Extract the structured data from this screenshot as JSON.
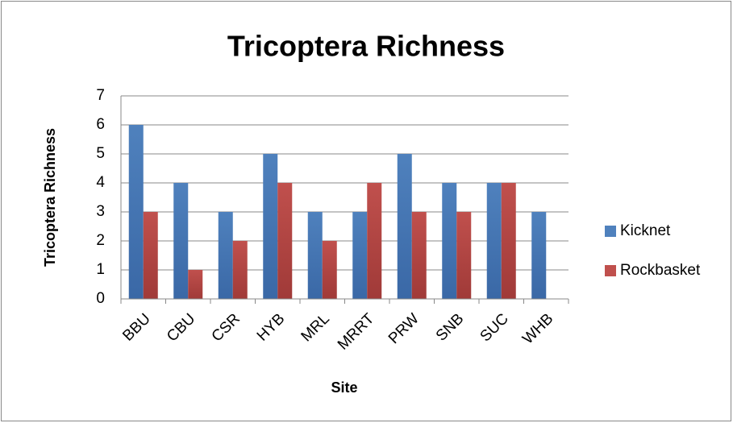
{
  "chart_data": {
    "type": "bar",
    "title": "Tricoptera Richness",
    "x_label": "Site",
    "y_label": "Tricoptera Richness",
    "categories": [
      "BBU",
      "CBU",
      "CSR",
      "HYB",
      "MRL",
      "MRRT",
      "PRW",
      "SNB",
      "SUC",
      "WHB"
    ],
    "series": [
      {
        "name": "Kicknet",
        "color": "#4f81bd",
        "values": [
          6,
          4,
          3,
          5,
          3,
          3,
          5,
          4,
          4,
          3
        ]
      },
      {
        "name": "Rockbasket",
        "color": "#c0504d",
        "values": [
          3,
          1,
          2,
          4,
          2,
          4,
          3,
          3,
          4,
          0
        ]
      }
    ],
    "ylim": [
      0,
      7
    ],
    "yticks": [
      0,
      1,
      2,
      3,
      4,
      5,
      6,
      7
    ],
    "grid": true,
    "legend": "right"
  }
}
